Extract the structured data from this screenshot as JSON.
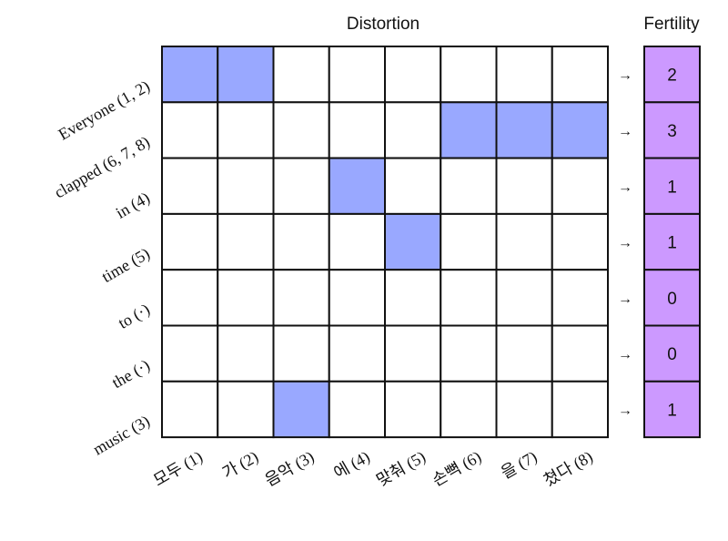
{
  "titles": {
    "distortion": "Distortion",
    "fertility": "Fertility"
  },
  "rows": [
    "Everyone (1, 2)",
    "clapped (6, 7, 8)",
    "in (4)",
    "time (5)",
    "to (·)",
    "the (·)",
    "music (3)"
  ],
  "columns": [
    "모두 (1)",
    "가 (2)",
    "음악 (3)",
    "에 (4)",
    "맞춰 (5)",
    "손뼉 (6)",
    "을 (7)",
    "쳤다 (8)"
  ],
  "alignment": [
    [
      0,
      0
    ],
    [
      0,
      1
    ],
    [
      1,
      5
    ],
    [
      1,
      6
    ],
    [
      1,
      7
    ],
    [
      2,
      3
    ],
    [
      3,
      4
    ],
    [
      6,
      2
    ]
  ],
  "fertility": [
    "2",
    "3",
    "1",
    "1",
    "0",
    "0",
    "1"
  ],
  "arrow_glyph": "→",
  "colors": {
    "aligned_fill": "#99a8ff",
    "empty_fill": "#ffffff",
    "fertility_fill": "#cc99ff",
    "grid_stroke": "#111111"
  }
}
